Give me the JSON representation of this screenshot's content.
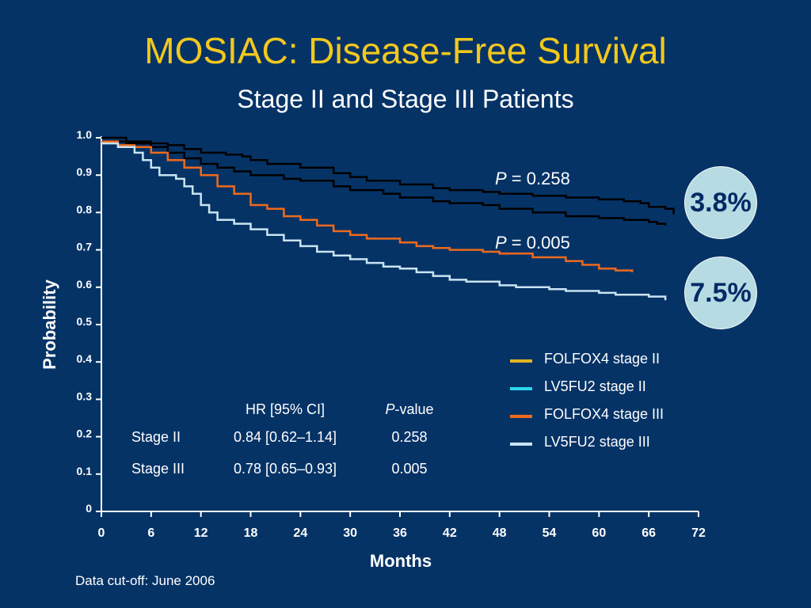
{
  "title": "MOSIAC: Disease-Free Survival",
  "subtitle": "Stage II and Stage III Patients",
  "footnote": "Data cut-off: June 2006",
  "chart_data": {
    "type": "line",
    "xlabel": "Months",
    "ylabel": "Probability",
    "xlim": [
      0,
      72
    ],
    "ylim": [
      0,
      1
    ],
    "xticks": [
      0,
      6,
      12,
      18,
      24,
      30,
      36,
      42,
      48,
      54,
      60,
      66,
      72
    ],
    "yticks": [
      "0",
      "0.1",
      "0.2",
      "0.3",
      "0.4",
      "0.5",
      "0.6",
      "0.7",
      "0.8",
      "0.9",
      "1.0"
    ],
    "legend_position": "right",
    "series": [
      {
        "name": "FOLFOX4 stage II",
        "legend_color": "#e2b623",
        "line_color": "#000000",
        "points": [
          [
            0,
            1.0
          ],
          [
            3,
            0.99
          ],
          [
            6,
            0.985
          ],
          [
            8,
            0.98
          ],
          [
            10,
            0.97
          ],
          [
            12,
            0.96
          ],
          [
            15,
            0.955
          ],
          [
            17,
            0.95
          ],
          [
            18,
            0.94
          ],
          [
            20,
            0.93
          ],
          [
            24,
            0.92
          ],
          [
            28,
            0.905
          ],
          [
            30,
            0.895
          ],
          [
            32,
            0.885
          ],
          [
            36,
            0.875
          ],
          [
            40,
            0.865
          ],
          [
            42,
            0.86
          ],
          [
            46,
            0.855
          ],
          [
            48,
            0.85
          ],
          [
            52,
            0.845
          ],
          [
            56,
            0.84
          ],
          [
            60,
            0.835
          ],
          [
            63,
            0.83
          ],
          [
            65,
            0.825
          ],
          [
            66,
            0.815
          ],
          [
            68,
            0.81
          ],
          [
            69,
            0.795
          ]
        ]
      },
      {
        "name": "LV5FU2 stage II",
        "legend_color": "#29d8f0",
        "line_color": "#000000",
        "points": [
          [
            0,
            0.99
          ],
          [
            3,
            0.985
          ],
          [
            6,
            0.975
          ],
          [
            8,
            0.96
          ],
          [
            10,
            0.945
          ],
          [
            12,
            0.93
          ],
          [
            14,
            0.92
          ],
          [
            16,
            0.91
          ],
          [
            18,
            0.9
          ],
          [
            22,
            0.89
          ],
          [
            24,
            0.885
          ],
          [
            28,
            0.87
          ],
          [
            30,
            0.86
          ],
          [
            34,
            0.85
          ],
          [
            36,
            0.84
          ],
          [
            40,
            0.83
          ],
          [
            42,
            0.825
          ],
          [
            46,
            0.82
          ],
          [
            48,
            0.81
          ],
          [
            52,
            0.8
          ],
          [
            56,
            0.79
          ],
          [
            60,
            0.785
          ],
          [
            63,
            0.78
          ],
          [
            66,
            0.775
          ],
          [
            67,
            0.77
          ],
          [
            68,
            0.765
          ]
        ]
      },
      {
        "name": "FOLFOX4 stage III",
        "legend_color": "#ee6a1c",
        "line_color": "#ee6a1c",
        "points": [
          [
            0,
            0.99
          ],
          [
            2,
            0.98
          ],
          [
            4,
            0.975
          ],
          [
            6,
            0.96
          ],
          [
            8,
            0.94
          ],
          [
            10,
            0.92
          ],
          [
            12,
            0.9
          ],
          [
            14,
            0.87
          ],
          [
            16,
            0.85
          ],
          [
            18,
            0.82
          ],
          [
            20,
            0.81
          ],
          [
            22,
            0.79
          ],
          [
            24,
            0.78
          ],
          [
            26,
            0.765
          ],
          [
            28,
            0.75
          ],
          [
            30,
            0.74
          ],
          [
            32,
            0.73
          ],
          [
            36,
            0.72
          ],
          [
            38,
            0.71
          ],
          [
            40,
            0.705
          ],
          [
            42,
            0.7
          ],
          [
            46,
            0.695
          ],
          [
            48,
            0.69
          ],
          [
            52,
            0.68
          ],
          [
            56,
            0.67
          ],
          [
            58,
            0.66
          ],
          [
            60,
            0.65
          ],
          [
            62,
            0.645
          ],
          [
            64,
            0.64
          ]
        ]
      },
      {
        "name": "LV5FU2 stage III",
        "legend_color": "#c9e4f2",
        "line_color": "#c9e4f2",
        "points": [
          [
            0,
            0.985
          ],
          [
            2,
            0.975
          ],
          [
            4,
            0.96
          ],
          [
            5,
            0.94
          ],
          [
            6,
            0.92
          ],
          [
            7,
            0.9
          ],
          [
            9,
            0.89
          ],
          [
            10,
            0.87
          ],
          [
            11,
            0.85
          ],
          [
            12,
            0.82
          ],
          [
            13,
            0.8
          ],
          [
            14,
            0.78
          ],
          [
            16,
            0.77
          ],
          [
            18,
            0.755
          ],
          [
            20,
            0.74
          ],
          [
            22,
            0.725
          ],
          [
            24,
            0.71
          ],
          [
            26,
            0.695
          ],
          [
            28,
            0.685
          ],
          [
            30,
            0.675
          ],
          [
            32,
            0.665
          ],
          [
            34,
            0.655
          ],
          [
            36,
            0.65
          ],
          [
            38,
            0.64
          ],
          [
            40,
            0.63
          ],
          [
            42,
            0.62
          ],
          [
            44,
            0.615
          ],
          [
            48,
            0.605
          ],
          [
            50,
            0.6
          ],
          [
            54,
            0.595
          ],
          [
            56,
            0.59
          ],
          [
            60,
            0.585
          ],
          [
            62,
            0.58
          ],
          [
            66,
            0.575
          ],
          [
            68,
            0.565
          ]
        ]
      }
    ]
  },
  "annotations": [
    {
      "p_label": "P",
      "p_value": " = 0.258",
      "difference": "3.8%"
    },
    {
      "p_label": "P",
      "p_value": " = 0.005",
      "difference": "7.5%"
    }
  ],
  "hr_table": {
    "headers": [
      "",
      "HR [95% CI]",
      "-value"
    ],
    "header_p": "P",
    "rows": [
      {
        "label": "Stage II",
        "hr": "0.84 [0.62–1.14]",
        "p": "0.258"
      },
      {
        "label": "Stage III",
        "hr": "0.78 [0.65–0.93]",
        "p": "0.005"
      }
    ]
  }
}
